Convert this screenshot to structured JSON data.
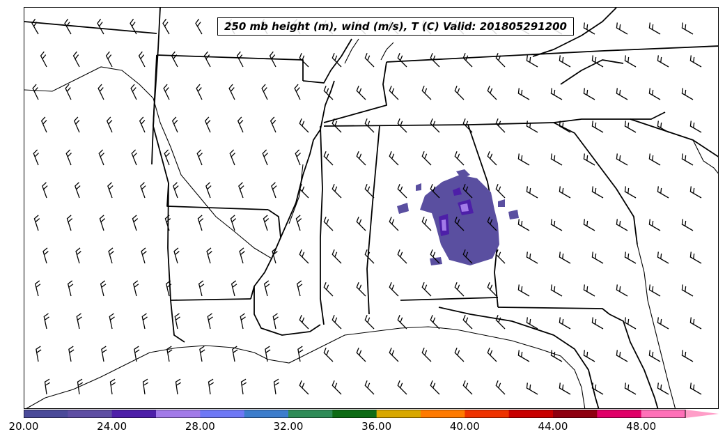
{
  "title": "250 mb height (m), wind (m/s), T (C) Valid: 201805291200",
  "colorbar": {
    "ticks": [
      "20.00",
      "24.00",
      "28.00",
      "32.00",
      "36.00",
      "40.00",
      "44.00",
      "48.00"
    ],
    "colors": [
      "#4a4a99",
      "#5e4ea3",
      "#4d1fa8",
      "#a27ae8",
      "#6e78f5",
      "#3c7dcc",
      "#2e8b57",
      "#0e6b15",
      "#d8a800",
      "#ff7a00",
      "#ee3200",
      "#c80000",
      "#8e0010",
      "#e00068",
      "#ff70b8"
    ],
    "extend_color": "#ff9ec8"
  },
  "temperature_region_color": "#5a4fa0",
  "temperature_core_color": "#4d1fa8",
  "temperature_inner_color": "#a27ae8"
}
